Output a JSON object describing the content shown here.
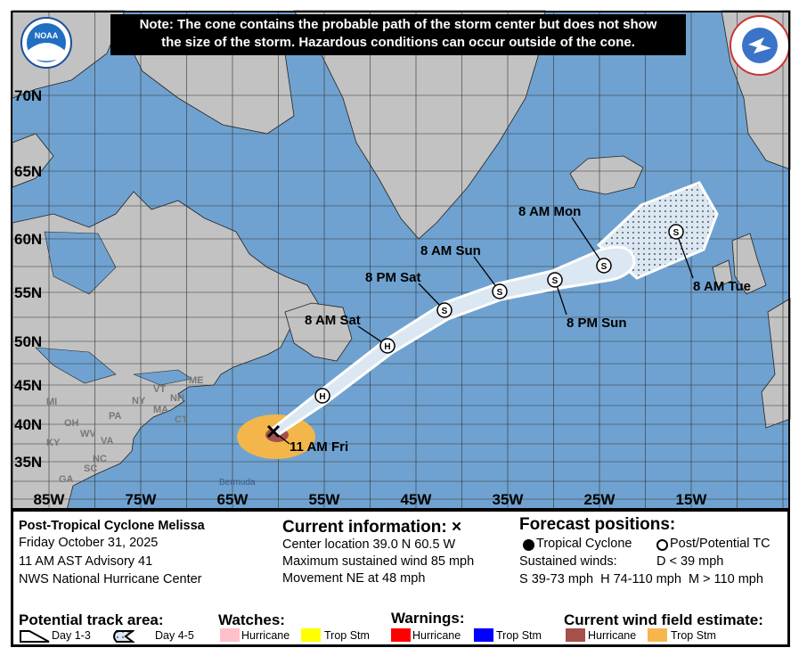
{
  "note": {
    "line1": "Note: The cone contains the probable path of the storm center but does not show",
    "line2": "the size of the storm. Hazardous conditions can occur outside of the cone."
  },
  "logos": {
    "left": "NOAA",
    "right": "NATIONAL WEATHER SERVICE"
  },
  "map": {
    "lat_labels": [
      "70N",
      "65N",
      "60N",
      "55N",
      "50N",
      "45N",
      "40N",
      "35N"
    ],
    "lon_labels": [
      "85W",
      "75W",
      "65W",
      "55W",
      "45W",
      "35W",
      "25W",
      "15W"
    ],
    "state_labels": [
      "ME",
      "MI",
      "NY",
      "VT",
      "NH",
      "MA",
      "CT",
      "PA",
      "OH",
      "WV",
      "VA",
      "KY",
      "NC",
      "SC",
      "GA"
    ],
    "place_labels": {
      "bermuda": "Bermuda"
    },
    "current_marker": "x-icon",
    "track": [
      {
        "label": "11 AM Fri",
        "symbol": "X"
      },
      {
        "label": "",
        "symbol": "H"
      },
      {
        "label": "8 AM Sat",
        "symbol": "H"
      },
      {
        "label": "8 PM Sat",
        "symbol": "S"
      },
      {
        "label": "8 AM Sun",
        "symbol": "S"
      },
      {
        "label": "8 PM Sun",
        "symbol": "S"
      },
      {
        "label": "8 AM Mon",
        "symbol": "S"
      },
      {
        "label": "8 AM Tue",
        "symbol": "S"
      }
    ],
    "colors": {
      "ocean": "#6fa2d0",
      "land": "#c2c2c2",
      "cone": "#dbe7f2",
      "trop_stm_wind": "#f2b64a",
      "hurricane_wind": "#a5504a"
    }
  },
  "info": {
    "storm": "Post-Tropical Cyclone Melissa",
    "date": "Friday October 31, 2025",
    "advisory": "11 AM AST Advisory 41",
    "center": "NWS National Hurricane Center",
    "current_title": "Current information: ×",
    "location": "Center location 39.0 N 60.5 W",
    "wind": "Maximum sustained wind 85 mph",
    "movement": "Movement NE at 48 mph",
    "forecast_title": "Forecast positions:",
    "tc": "Tropical Cyclone",
    "ptc": "Post/Potential TC",
    "sustained": "Sustained winds:",
    "d": "D < 39 mph",
    "scale": "S 39-73 mph  H 74-110 mph  M > 110 mph"
  },
  "legend": {
    "track_title": "Potential track area:",
    "day13": "Day 1-3",
    "day45": "Day 4-5",
    "watches_title": "Watches:",
    "watch_hur": "Hurricane",
    "watch_ts": "Trop Stm",
    "warnings_title": "Warnings:",
    "warn_hur": "Hurricane",
    "warn_ts": "Trop Stm",
    "wind_title": "Current wind field estimate:",
    "wind_hur": "Hurricane",
    "wind_ts": "Trop Stm",
    "colors": {
      "watch_hur": "#ffc0cb",
      "watch_ts": "#ffff00",
      "warn_hur": "#ff0000",
      "warn_ts": "#0000ff",
      "wind_hur": "#a5504a",
      "wind_ts": "#f7b54d"
    }
  }
}
